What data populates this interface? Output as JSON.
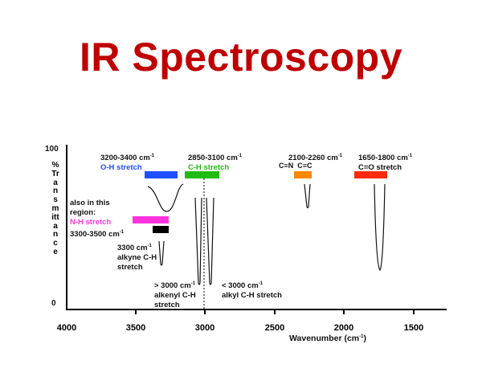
{
  "title": "IR Spectroscopy",
  "y_axis": {
    "label": "%Transmittance",
    "top": "100",
    "bottom": "0"
  },
  "x_axis": {
    "label": "Wavenumber (cm",
    "label_sup": "-1",
    "label_end": ")",
    "ticks": [
      "4000",
      "3500",
      "3000",
      "2500",
      "2000",
      "1500"
    ]
  },
  "cm_sup": "-1",
  "annotations": {
    "oh_range": "3200-3400 cm",
    "oh_name": "O-H stretch",
    "ch_range": "2850-3100 cm",
    "ch_name": "C-H stretch",
    "triple_range": "2100-2260 cm",
    "cn": "C≡N",
    "cc": "C≡C",
    "co_range": "1650-1800 cm",
    "co_name": "C=O stretch",
    "also_line1": "also in this",
    "also_line2": "region:",
    "nh_name": "N-H stretch",
    "nh_range": "3300-3500 cm",
    "alkyne_range": "3300 cm",
    "alkyne_line2": "alkyne C-H",
    "alkyne_line3": "stretch",
    "alkenyl_range": "> 3000 cm",
    "alkenyl_line2": "alkenyl C-H",
    "alkenyl_line3": "stretch",
    "alkyl_range": "< 3000 cm",
    "alkyl_line2": "alkyl C-H stretch"
  },
  "colors": {
    "title": "#c00000",
    "oh": "#1f4fff",
    "ch": "#22bb11",
    "nh": "#ff33dd",
    "alkyne_bar": "#000000",
    "triple": "#ff8800",
    "co": "#ff2a0a"
  }
}
